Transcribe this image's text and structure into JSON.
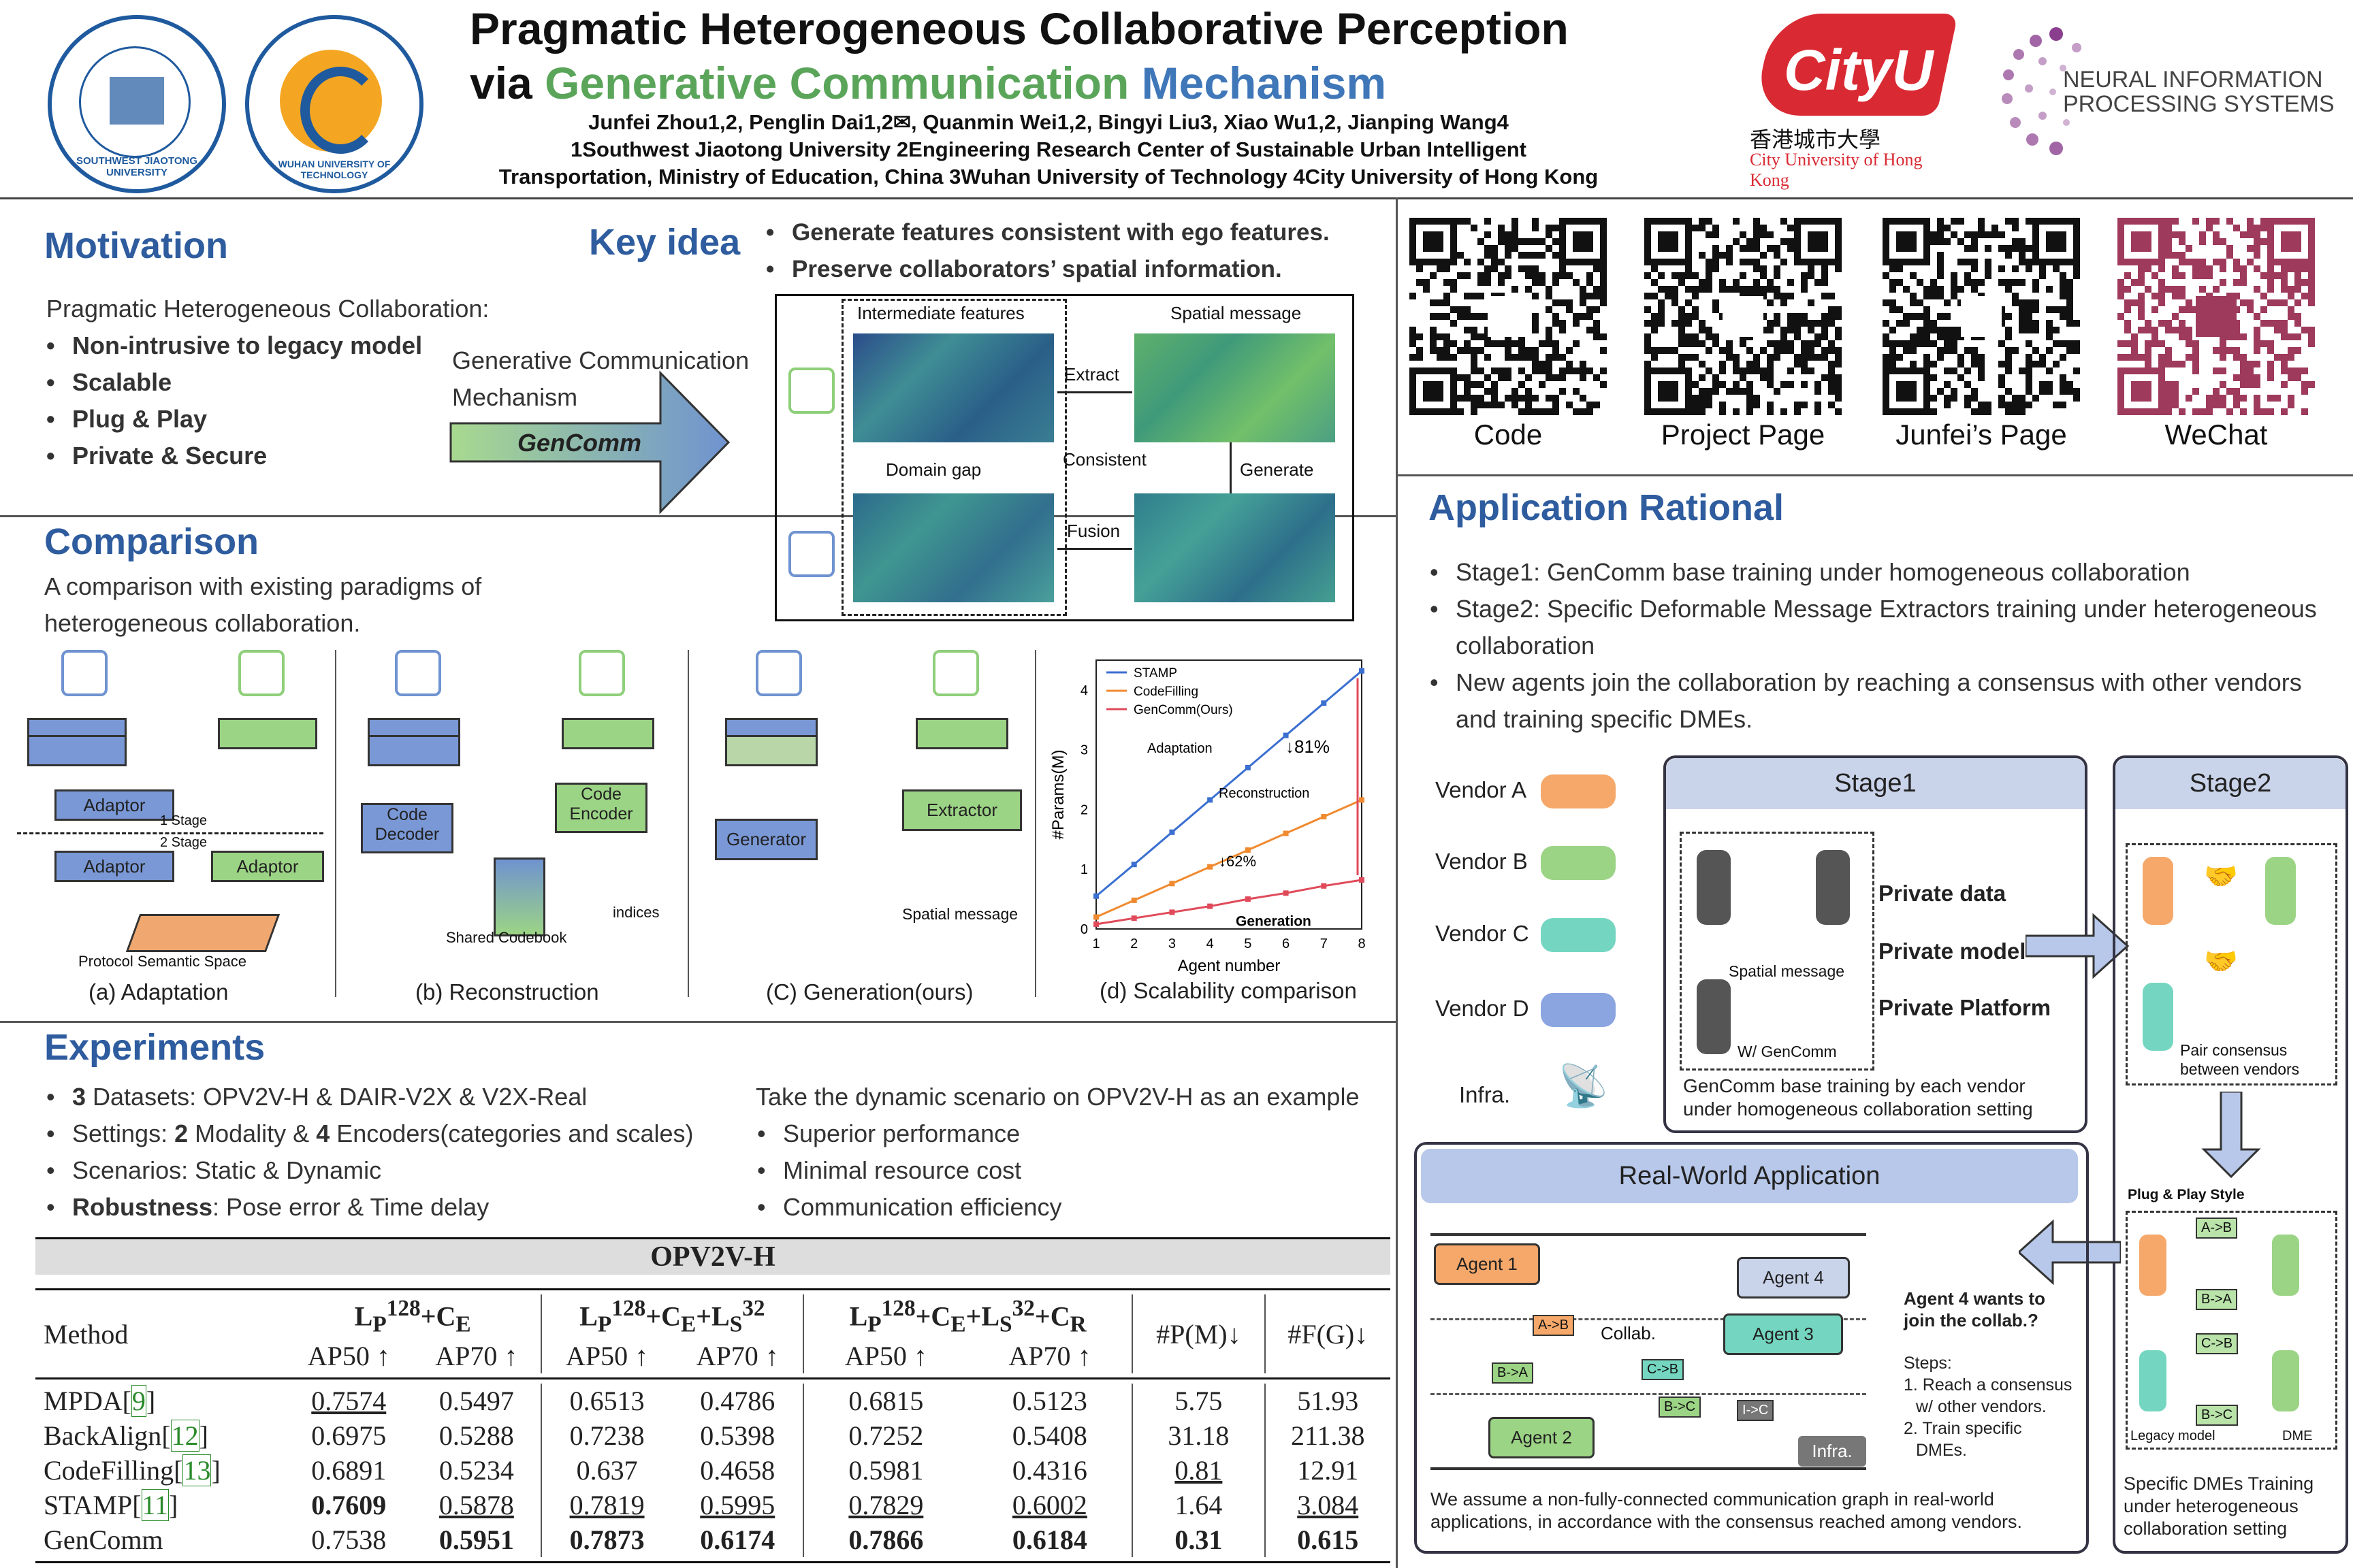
{
  "header": {
    "title_line1": "Pragmatic Heterogeneous Collaborative Perception",
    "title_via": "via ",
    "title_gen": "Generative Communication",
    "title_mech": " Mechanism",
    "authors": "Junfei Zhou1,2, Penglin Dai1,2✉, Quanmin Wei1,2, Bingyi Liu3, Xiao Wu1,2, Jianping Wang4",
    "affil1": "1Southwest Jiaotong University  2Engineering Research Center of Sustainable Urban Intelligent",
    "affil2": "Transportation, Ministry of Education, China  3Wuhan University of Technology  4City University of Hong Kong",
    "logo_swjtu": "SOUTHWEST JIAOTONG UNIVERSITY",
    "logo_whut": "WUHAN UNIVERSITY OF TECHNOLOGY",
    "cityu_word": "CityU",
    "cityu_cn": "香港城市大學",
    "cityu_en": "City University of Hong Kong",
    "neurips_line1": "NEURAL INFORMATION",
    "neurips_line2": "PROCESSING SYSTEMS"
  },
  "motivation": {
    "title": "Motivation",
    "intro": "Pragmatic Heterogeneous Collaboration:",
    "items": [
      "Non-intrusive to legacy model",
      "Scalable",
      "Plug & Play",
      "Private & Secure"
    ]
  },
  "keyidea": {
    "title": "Key idea",
    "items": [
      "Generate features consistent with ego features.",
      "Preserve collaborators’ spatial information."
    ],
    "arrow_text1": "Generative Communication",
    "arrow_text2": "Mechanism",
    "arrow_label": "GenComm",
    "labels": {
      "intermediate": "Intermediate features",
      "spatial": "Spatial message",
      "extract": "Extract",
      "domain_gap": "Domain gap",
      "consistent": "Consistent",
      "generate": "Generate",
      "fusion": "Fusion"
    }
  },
  "comparison": {
    "title": "Comparison",
    "desc1": "A comparison with existing paradigms of",
    "desc2": "heterogeneous collaboration.",
    "panels": {
      "a": {
        "caption": "(a) Adaptation",
        "adaptor": "Adaptor",
        "stage1": "1 Stage",
        "stage2": "2 Stage",
        "protocol": "Protocol Semantic Space"
      },
      "b": {
        "caption": "(b) Reconstruction",
        "decoder": "Code Decoder",
        "encoder": "Code Encoder",
        "codebook": "Shared Codebook",
        "indices": "indices"
      },
      "c": {
        "caption": "(C) Generation(ours)",
        "generator": "Generator",
        "extractor": "Extractor",
        "spatial": "Spatial message"
      },
      "d": {
        "caption": "(d) Scalability comparison"
      }
    }
  },
  "chart_data": {
    "type": "line",
    "title": "",
    "xlabel": "Agent number",
    "ylabel": "#Params(M)",
    "x": [
      1,
      2,
      3,
      4,
      5,
      6,
      7,
      8
    ],
    "xlim": [
      1,
      8
    ],
    "ylim": [
      0,
      4.5
    ],
    "yticks": [
      0,
      1,
      2,
      3,
      4
    ],
    "series": [
      {
        "name": "STAMP",
        "color": "#3b6fd0",
        "values": [
          0.55,
          1.08,
          1.62,
          2.16,
          2.7,
          3.24,
          3.78,
          4.32
        ]
      },
      {
        "name": "CodeFilling",
        "color": "#f08a30",
        "values": [
          0.2,
          0.48,
          0.76,
          1.04,
          1.32,
          1.6,
          1.88,
          2.16
        ]
      },
      {
        "name": "GenComm(Ours)",
        "color": "#e04a5a",
        "values": [
          0.08,
          0.18,
          0.28,
          0.38,
          0.5,
          0.6,
          0.72,
          0.82
        ]
      }
    ],
    "annotations": {
      "adaptation": "Adaptation",
      "reconstruction": "Reconstruction",
      "generation": "Generation",
      "pct81": "↓81%",
      "pct62": "↓62%"
    },
    "legend_position": "top-left"
  },
  "experiments": {
    "title": "Experiments",
    "left": [
      {
        "b": "3",
        "t": " Datasets: OPV2V-H & DAIR-V2X & V2X-Real"
      },
      {
        "pre": "Settings: ",
        "b": "2",
        "mid": " Modality & ",
        "b2": "4",
        "t": " Encoders(categories and scales)"
      },
      {
        "t": "Scenarios: Static & Dynamic"
      },
      {
        "b": "Robustness",
        "t": ": Pose error & Time delay"
      }
    ],
    "right_intro": "Take the dynamic scenario on OPV2V-H as an example",
    "right": [
      "Superior performance",
      "Minimal resource cost",
      "Communication efficiency"
    ]
  },
  "table": {
    "dataset": "OPV2V-H",
    "method_header": "Method",
    "groups": [
      "L_P^128+C_E",
      "L_P^128+C_E+L_S^32",
      "L_P^128+C_E+L_S^32+C_R"
    ],
    "sub": [
      "AP50 ↑",
      "AP70 ↑"
    ],
    "p_header": "#P(M)↓",
    "f_header": "#F(G)↓",
    "rows": [
      {
        "method": "MPDA",
        "ref": "9",
        "vals": [
          "0.7574",
          "0.5497",
          "0.6513",
          "0.4786",
          "0.6815",
          "0.5123",
          "5.75",
          "51.93"
        ]
      },
      {
        "method": "BackAlign",
        "ref": "12",
        "vals": [
          "0.6975",
          "0.5288",
          "0.7238",
          "0.5398",
          "0.7252",
          "0.5408",
          "31.18",
          "211.38"
        ]
      },
      {
        "method": "CodeFilling",
        "ref": "13",
        "vals": [
          "0.6891",
          "0.5234",
          "0.637",
          "0.4658",
          "0.5981",
          "0.4316",
          "0.81",
          "12.91"
        ]
      },
      {
        "method": "STAMP",
        "ref": "11",
        "vals": [
          "0.7609",
          "0.5878",
          "0.7819",
          "0.5995",
          "0.7829",
          "0.6002",
          "1.64",
          "3.084"
        ]
      },
      {
        "method": "GenComm",
        "ref": "",
        "vals": [
          "0.7538",
          "0.5951",
          "0.7873",
          "0.6174",
          "0.7866",
          "0.6184",
          "0.31",
          "0.615"
        ]
      }
    ]
  },
  "qr": {
    "labels": [
      "Code",
      "Project Page",
      "Junfei’s Page",
      "WeChat"
    ]
  },
  "application": {
    "title": "Application Rational",
    "items": [
      "Stage1: GenComm base training under homogeneous collaboration",
      "Stage2: Specific Deformable Message Extractors training under heterogeneous collaboration",
      "New agents join the collaboration by reaching a consensus with other vendors and training specific DMEs."
    ],
    "vendors": [
      "Vendor A",
      "Vendor B",
      "Vendor C",
      "Vendor D",
      "Infra."
    ],
    "stage1": {
      "title": "Stage1",
      "spatial": "Spatial message",
      "wgencomm": "W/ GenComm",
      "private_data": "Private data",
      "private_model": "Private model",
      "private_platform": "Private Platform",
      "caption1": "GenComm base training by each vendor",
      "caption2": "under homogeneous collaboration setting"
    },
    "stage2": {
      "title": "Stage2",
      "pair1": "Pair consensus",
      "pair2": "between vendors",
      "plug": "Plug & Play Style",
      "legacy": "Legacy model",
      "dme": "DME",
      "edges": [
        "A->B",
        "B->A",
        "C->B",
        "B->C"
      ],
      "caption1": "Specific DMEs Training",
      "caption2": "under heterogeneous",
      "caption3": "collaboration setting"
    },
    "realworld": {
      "title": "Real-World Application",
      "agents": [
        "Agent 1",
        "Agent 2",
        "Agent 3",
        "Agent 4",
        "Infra."
      ],
      "edges": [
        "A->B",
        "B->A",
        "C->B",
        "B->C",
        "I->C"
      ],
      "collab": "Collab.",
      "q1": "Agent 4 wants to",
      "q2": "join the collab.?",
      "steps": "Steps:",
      "step1a": "1. Reach a consensus",
      "step1b": "w/ other vendors.",
      "step2a": "2. Train specific",
      "step2b": "DMEs.",
      "caption1": "We assume a non-fully-connected communication graph in real-world",
      "caption2": "applications, in accordance with the consensus reached among vendors."
    }
  },
  "colors": {
    "accent": "#2e5c9e",
    "cityu_red": "#d92a33",
    "neurips_purple": "#8a3e8e",
    "stage_bg": "#c9d3ea"
  }
}
